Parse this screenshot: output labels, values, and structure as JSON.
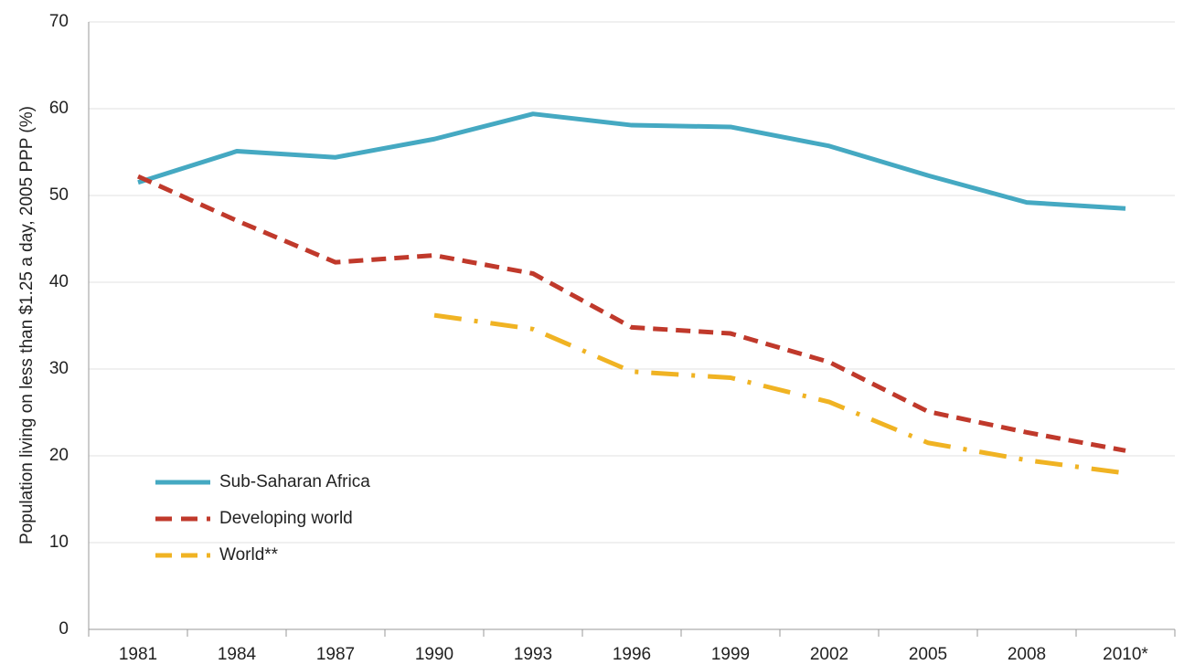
{
  "chart_data": {
    "type": "line",
    "y_label": "Population living on less than $1.25 a day, 2005 PPP (%)",
    "categories": [
      "1981",
      "1984",
      "1987",
      "1990",
      "1993",
      "1996",
      "1999",
      "2002",
      "2005",
      "2008",
      "2010*"
    ],
    "series": [
      {
        "name": "Sub-Saharan Africa",
        "color": "#45a9c2",
        "dash": "solid",
        "values": [
          51.5,
          55.1,
          54.4,
          56.5,
          59.4,
          58.1,
          57.9,
          55.7,
          52.3,
          49.2,
          48.5
        ]
      },
      {
        "name": "Developing world",
        "color": "#c0392b",
        "dash": "dashed",
        "values": [
          52.2,
          47.1,
          42.3,
          43.1,
          41.0,
          34.8,
          34.1,
          30.8,
          25.1,
          22.7,
          20.6
        ]
      },
      {
        "name": "World**",
        "color": "#f0b323",
        "dash": "dashdot",
        "values": [
          null,
          null,
          null,
          36.2,
          34.6,
          29.7,
          29.0,
          26.2,
          21.5,
          19.5,
          18.0
        ]
      }
    ],
    "ylim": [
      0,
      70
    ],
    "yticks": [
      0,
      10,
      20,
      30,
      40,
      50,
      60,
      70
    ],
    "grid": true,
    "legend": "lower left"
  }
}
